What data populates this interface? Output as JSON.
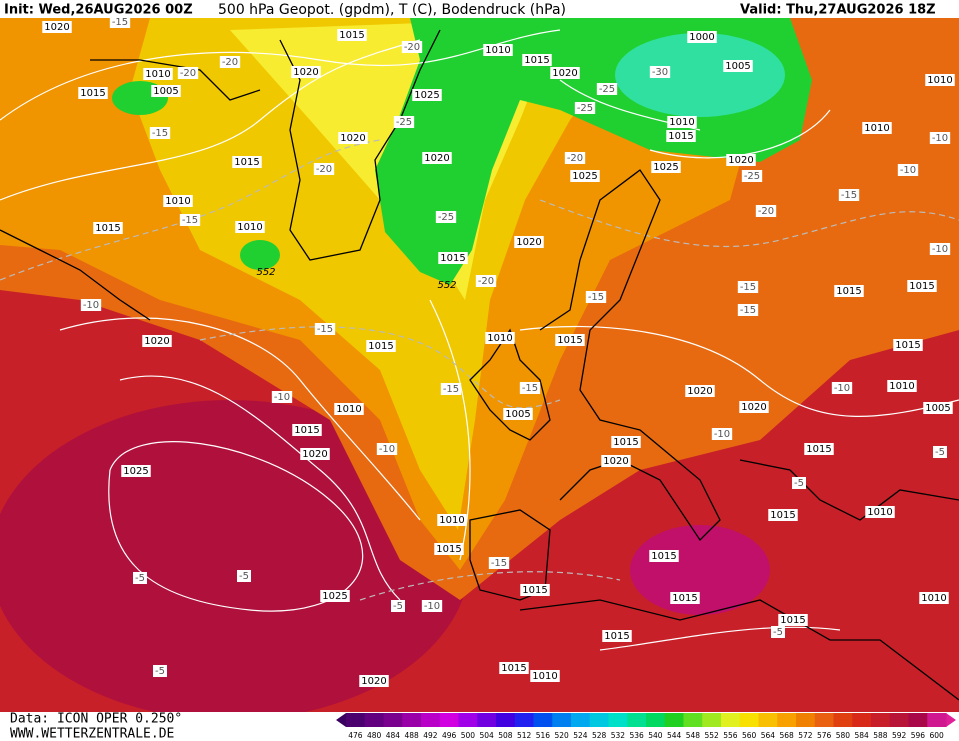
{
  "header": {
    "init": "Init: Wed,26AUG2026 00Z",
    "title": "500 hPa Geopot. (gpdm), T (C), Bodendruck (hPa)",
    "valid": "Valid: Thu,27AUG2026 18Z"
  },
  "footer": {
    "data": "Data: ICON OPER 0.250°",
    "site": "WWW.WETTERZENTRALE.DE"
  },
  "scale": {
    "labels": [
      476,
      480,
      484,
      488,
      492,
      496,
      500,
      504,
      508,
      512,
      516,
      520,
      524,
      528,
      532,
      536,
      540,
      544,
      548,
      552,
      556,
      560,
      564,
      568,
      572,
      576,
      580,
      584,
      588,
      592,
      596,
      600
    ],
    "colors": [
      "#4b0070",
      "#62007f",
      "#7a008e",
      "#9a00a8",
      "#b800c8",
      "#d000e0",
      "#a000e8",
      "#7000e0",
      "#4000e0",
      "#2020f0",
      "#0050f0",
      "#0080f0",
      "#00a8f0",
      "#00c8e0",
      "#00e0c8",
      "#00e090",
      "#00d860",
      "#20d020",
      "#60e020",
      "#a0e820",
      "#e0f020",
      "#f8e000",
      "#f8c000",
      "#f8a000",
      "#f08000",
      "#e86010",
      "#e04010",
      "#d82818",
      "#c81e2a",
      "#b81438",
      "#a80848",
      "#d01890"
    ]
  },
  "pressure_labels": [
    "1020",
    "1015",
    "1010",
    "1015",
    "1020",
    "1000",
    "1005",
    "1010",
    "1015",
    "1010",
    "1005",
    "1015",
    "1020",
    "1025",
    "1020",
    "1020",
    "1015",
    "1025",
    "1025",
    "1020",
    "1010",
    "1015",
    "1010",
    "1015",
    "1020",
    "1010",
    "1010",
    "1015",
    "1015",
    "1015",
    "1020",
    "1015",
    "1010",
    "1015",
    "1020",
    "1020",
    "1010",
    "1005",
    "1010",
    "1015",
    "1020",
    "1005",
    "1015",
    "1020",
    "1015",
    "1025",
    "1010",
    "1015",
    "1015",
    "1010",
    "1015",
    "1015",
    "1015",
    "1025",
    "1015",
    "1015",
    "1010",
    "1015",
    "1010",
    "1020"
  ],
  "temperature_labels": [
    "-15",
    "-20",
    "-20",
    "-15",
    "-20",
    "-25",
    "-25",
    "-25",
    "-30",
    "-20",
    "-25",
    "-20",
    "-15",
    "-10",
    "-10",
    "-10",
    "-25",
    "-20",
    "-20",
    "-15",
    "-10",
    "-15",
    "-15",
    "-15",
    "-15",
    "-10",
    "-10",
    "-15",
    "-15",
    "-10",
    "-10",
    "-5",
    "-5",
    "-15",
    "-5",
    "-5",
    "-5",
    "-10",
    "-5",
    "-5"
  ],
  "geopotential_labels": [
    "552",
    "552"
  ]
}
